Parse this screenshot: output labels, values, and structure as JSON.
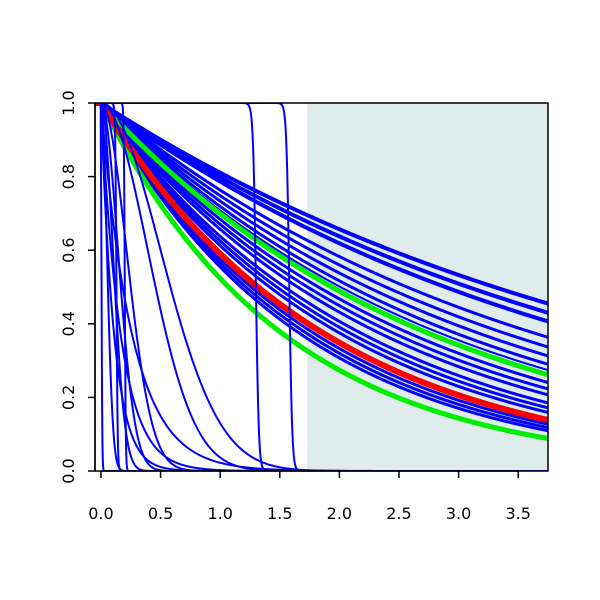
{
  "chart_data": {
    "type": "line",
    "title": "",
    "xlabel": "",
    "ylabel": "",
    "xlim": [
      -0.05,
      3.75
    ],
    "ylim": [
      0.0,
      1.0
    ],
    "x_ticks": [
      "0.0",
      "0.5",
      "1.0",
      "1.5",
      "2.0",
      "2.5",
      "3.0",
      "3.5"
    ],
    "y_ticks": [
      "0.0",
      "0.2",
      "0.4",
      "0.6",
      "0.8",
      "1.0"
    ],
    "grid": false,
    "legend": "none",
    "shaded_region": {
      "x_from": 1.73,
      "x_to": 3.75,
      "color": "#e0ecec"
    },
    "colors": {
      "curves": "#0000ff",
      "bands": "#00ee00",
      "central": "#ff0000"
    },
    "series": [
      {
        "kind": "exp",
        "rate": 0.21,
        "color": "#0000ff",
        "width": 4
      },
      {
        "kind": "exp",
        "rate": 0.225,
        "color": "#0000ff",
        "width": 4
      },
      {
        "kind": "exp",
        "rate": 0.24,
        "color": "#0000ff",
        "width": 4
      },
      {
        "kind": "exp",
        "rate": 0.27,
        "color": "#0000ff",
        "width": 3
      },
      {
        "kind": "exp",
        "rate": 0.29,
        "color": "#0000ff",
        "width": 3
      },
      {
        "kind": "exp",
        "rate": 0.31,
        "color": "#0000ff",
        "width": 3
      },
      {
        "kind": "exp",
        "rate": 0.33,
        "color": "#0000ff",
        "width": 3
      },
      {
        "kind": "exp",
        "rate": 0.345,
        "color": "#0000ff",
        "width": 2
      },
      {
        "kind": "exp",
        "rate": 0.36,
        "color": "#0000ff",
        "width": 2
      },
      {
        "kind": "exp",
        "rate": 0.38,
        "color": "#0000ff",
        "width": 3
      },
      {
        "kind": "exp",
        "rate": 0.4,
        "color": "#0000ff",
        "width": 3
      },
      {
        "kind": "exp",
        "rate": 0.42,
        "color": "#0000ff",
        "width": 3
      },
      {
        "kind": "exp",
        "rate": 0.45,
        "color": "#0000ff",
        "width": 3
      },
      {
        "kind": "exp",
        "rate": 0.47,
        "color": "#0000ff",
        "width": 3
      },
      {
        "kind": "exp",
        "rate": 0.49,
        "color": "#0000ff",
        "width": 3
      },
      {
        "kind": "exp",
        "rate": 0.55,
        "color": "#0000ff",
        "width": 3
      },
      {
        "kind": "exp",
        "rate": 0.57,
        "color": "#0000ff",
        "width": 3
      },
      {
        "kind": "exp",
        "rate": 0.59,
        "color": "#0000ff",
        "width": 3
      },
      {
        "kind": "exp",
        "rate": 0.3576,
        "color": "#00ee00",
        "width": 5
      },
      {
        "kind": "exp",
        "rate": 0.6472,
        "color": "#00ee00",
        "width": 5
      },
      {
        "kind": "exp",
        "rate": 0.5268,
        "color": "#ff0000",
        "width": 6
      },
      {
        "kind": "logistic",
        "mid": 1.3,
        "scale": 0.012,
        "color": "#0000ff",
        "width": 2
      },
      {
        "kind": "logistic",
        "mid": 1.58,
        "scale": 0.012,
        "color": "#0000ff",
        "width": 2
      },
      {
        "kind": "logistic",
        "mid": 0.005,
        "scale": 0.003,
        "color": "#0000ff",
        "width": 2
      },
      {
        "kind": "logistic",
        "mid": 0.13,
        "scale": 0.005,
        "color": "#0000ff",
        "width": 2
      },
      {
        "kind": "logistic",
        "mid": 0.2,
        "scale": 0.004,
        "color": "#0000ff",
        "width": 2
      },
      {
        "kind": "gauss",
        "scale": 0.07,
        "color": "#0000ff",
        "width": 2
      },
      {
        "kind": "gauss",
        "scale": 0.14,
        "color": "#0000ff",
        "width": 2
      },
      {
        "kind": "gauss",
        "scale": 0.2,
        "color": "#0000ff",
        "width": 2
      },
      {
        "kind": "gauss",
        "scale": 0.3,
        "color": "#0000ff",
        "width": 2
      },
      {
        "kind": "gauss",
        "scale": 0.55,
        "color": "#0000ff",
        "width": 2
      },
      {
        "kind": "gauss",
        "scale": 0.7,
        "color": "#0000ff",
        "width": 2
      },
      {
        "kind": "exp",
        "rate": 9.0,
        "color": "#0000ff",
        "width": 2
      },
      {
        "kind": "exp",
        "rate": 6.0,
        "color": "#0000ff",
        "width": 2
      },
      {
        "kind": "exp",
        "rate": 3.8,
        "color": "#0000ff",
        "width": 2
      }
    ]
  }
}
